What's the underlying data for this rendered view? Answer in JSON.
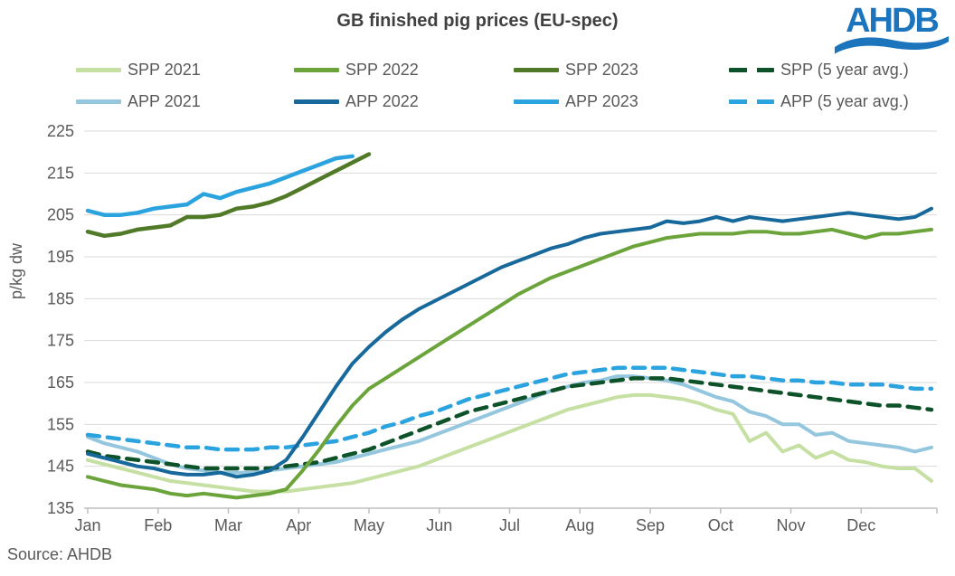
{
  "header": {
    "logo_text": "AHDB"
  },
  "source": {
    "label": "Source: AHDB"
  },
  "chart_data": {
    "type": "line",
    "title": "GB finished pig prices (EU-spec)",
    "xlabel": "",
    "ylabel": "p/kg dw",
    "unit": "p/kg dw",
    "ylim": [
      135,
      225
    ],
    "y_ticks": [
      225,
      215,
      205,
      195,
      185,
      175,
      165,
      155,
      145,
      135
    ],
    "x_categories": [
      "Jan",
      "Feb",
      "Mar",
      "Apr",
      "May",
      "Jun",
      "Jul",
      "Aug",
      "Sep",
      "Oct",
      "Nov",
      "Dec"
    ],
    "x_resolution": "weekly (52 points per full-year series)",
    "grid": true,
    "legend_position": "top",
    "series": [
      {
        "name": "SPP 2021",
        "color": "#C5E0A2",
        "dashed": false,
        "width": 4,
        "values": [
          146.5,
          145.5,
          144.5,
          143.5,
          142.5,
          141.5,
          141,
          140.5,
          140,
          139.5,
          139,
          139,
          139,
          139.5,
          140,
          140.5,
          141,
          142,
          143,
          144,
          145,
          146.5,
          148,
          149.5,
          151,
          152.5,
          154,
          155.5,
          157,
          158.5,
          159.5,
          160.5,
          161.5,
          162,
          162,
          161.5,
          161,
          160,
          158.5,
          157.5,
          151,
          153,
          148.5,
          150,
          147,
          148.5,
          146.5,
          146,
          145,
          144.5,
          144.5,
          141.5
        ]
      },
      {
        "name": "APP 2021",
        "color": "#94C6DE",
        "dashed": false,
        "width": 4,
        "values": [
          152,
          150.5,
          149.5,
          148.5,
          147,
          145.5,
          144.5,
          144,
          143.5,
          143.5,
          143.5,
          144,
          144.5,
          145,
          145.5,
          146,
          147,
          148,
          149,
          150,
          151,
          152.5,
          154,
          155.5,
          157,
          158.5,
          160,
          161.5,
          163,
          164,
          165,
          165.5,
          166.5,
          166.5,
          166,
          165.5,
          164.5,
          163,
          161.5,
          160.5,
          158,
          157,
          155,
          155,
          152.5,
          153,
          151,
          150.5,
          150,
          149.5,
          148.5,
          149.5
        ]
      },
      {
        "name": "SPP (5 year avg.)",
        "color": "#0E5229",
        "dashed": true,
        "width": 4.5,
        "values": [
          148.5,
          147.5,
          147,
          146.5,
          146,
          145.5,
          145,
          144.5,
          144.5,
          144.5,
          144.5,
          144.5,
          145,
          145.5,
          146,
          147,
          148,
          149,
          150.5,
          152,
          153.5,
          155,
          156.5,
          158,
          159,
          160,
          161,
          162,
          163,
          164,
          164.5,
          165,
          165.5,
          166,
          166,
          166,
          165.5,
          165,
          164.5,
          164,
          163.5,
          163,
          162.5,
          162,
          161.5,
          161,
          160.5,
          160,
          159.5,
          159.5,
          159,
          158.5
        ]
      },
      {
        "name": "APP (5 year avg.)",
        "color": "#2BA3DF",
        "dashed": true,
        "width": 4.5,
        "values": [
          152.5,
          152,
          151.5,
          151,
          150.5,
          150,
          149.5,
          149.5,
          149,
          149,
          149,
          149.5,
          149.5,
          150,
          150.5,
          151,
          152,
          153,
          154.5,
          155.5,
          157,
          158,
          159.5,
          161,
          162,
          163,
          164,
          165,
          166,
          167,
          167.5,
          168,
          168.5,
          168.5,
          168.5,
          168.5,
          168,
          167.5,
          167,
          166.5,
          166.5,
          166,
          165.5,
          165.5,
          165,
          165,
          164.5,
          164.5,
          164.5,
          164,
          163.5,
          163.5
        ]
      },
      {
        "name": "SPP 2022",
        "color": "#6CA43C",
        "dashed": false,
        "width": 4,
        "values": [
          142.5,
          141.5,
          140.5,
          140,
          139.5,
          138.5,
          138,
          138.5,
          138,
          137.5,
          138,
          138.5,
          139.5,
          144,
          149,
          154.5,
          159.5,
          163.5,
          166,
          168.5,
          171,
          173.5,
          176,
          178.5,
          181,
          183.5,
          186,
          188,
          190,
          191.5,
          193,
          194.5,
          196,
          197.5,
          198.5,
          199.5,
          200,
          200.5,
          200.5,
          200.5,
          201,
          201,
          200.5,
          200.5,
          201,
          201.5,
          200.5,
          199.5,
          200.5,
          200.5,
          201,
          201.5
        ]
      },
      {
        "name": "APP 2022",
        "color": "#17689B",
        "dashed": false,
        "width": 4,
        "values": [
          148,
          147,
          146,
          145,
          144.5,
          143.5,
          143,
          143,
          143.5,
          142.5,
          143,
          144,
          146.5,
          152,
          158,
          164,
          169.5,
          173.5,
          177,
          180,
          182.5,
          184.5,
          186.5,
          188.5,
          190.5,
          192.5,
          194,
          195.5,
          197,
          198,
          199.5,
          200.5,
          201,
          201.5,
          202,
          203.5,
          203,
          203.5,
          204.5,
          203.5,
          204.5,
          204,
          203.5,
          204,
          204.5,
          205,
          205.5,
          205,
          204.5,
          204,
          204.5,
          206.5
        ]
      },
      {
        "name": "SPP 2023",
        "color": "#507A28",
        "dashed": false,
        "width": 4.5,
        "values": [
          201,
          200,
          200.5,
          201.5,
          202,
          202.5,
          204.5,
          204.5,
          205,
          206.5,
          207,
          208,
          209.5,
          211.5,
          213.5,
          215.5,
          217.5,
          219.5
        ]
      },
      {
        "name": "APP 2023",
        "color": "#2BA3DF",
        "dashed": false,
        "width": 4.5,
        "values": [
          206,
          205,
          205,
          205.5,
          206.5,
          207,
          207.5,
          210,
          209,
          210.5,
          211.5,
          212.5,
          214,
          215.5,
          217,
          218.5,
          219
        ]
      }
    ],
    "legend_order": [
      "SPP 2021",
      "SPP 2022",
      "SPP 2023",
      "SPP (5 year avg.)",
      "APP 2021",
      "APP 2022",
      "APP 2023",
      "APP (5 year avg.)"
    ]
  },
  "colors": {
    "logo_blue": "#1C75BC",
    "title_text": "#404040",
    "axis_text": "#595959",
    "gridline": "#D9D9D9",
    "axis_line": "#BFBFBF"
  }
}
